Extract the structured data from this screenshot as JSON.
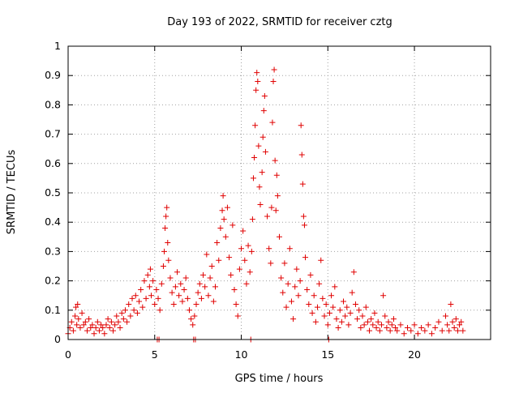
{
  "chart_data": {
    "type": "scatter",
    "title": "Day 193 of 2022, SRMTID for receiver cztg",
    "xlabel": "GPS time / hours",
    "ylabel": "SRMTID / TECUs",
    "xlim": [
      0,
      24.4
    ],
    "ylim": [
      0,
      1
    ],
    "x_ticks": [
      0,
      5,
      10,
      15,
      20
    ],
    "x_tick_labels": [
      "0",
      "5",
      "10",
      "15",
      "20"
    ],
    "y_ticks": [
      0,
      0.1,
      0.2,
      0.3,
      0.4,
      0.5,
      0.6,
      0.7,
      0.8,
      0.9,
      1
    ],
    "y_tick_labels": [
      "0",
      "0.1",
      "0.2",
      "0.3",
      "0.4",
      "0.5",
      "0.6",
      "0.7",
      "0.8",
      "0.9",
      "1"
    ],
    "grid": true,
    "marker": "+",
    "colors": {
      "series": "#e00000",
      "grid": "#a0a0a0",
      "axis": "#000000"
    },
    "series": [
      {
        "name": "SRMTID",
        "points": [
          [
            0.0,
            0.02
          ],
          [
            0.1,
            0.04
          ],
          [
            0.2,
            0.06
          ],
          [
            0.3,
            0.03
          ],
          [
            0.4,
            0.08
          ],
          [
            0.45,
            0.11
          ],
          [
            0.5,
            0.05
          ],
          [
            0.55,
            0.12
          ],
          [
            0.6,
            0.07
          ],
          [
            0.7,
            0.04
          ],
          [
            0.8,
            0.09
          ],
          [
            0.9,
            0.05
          ],
          [
            1.0,
            0.06
          ],
          [
            1.1,
            0.03
          ],
          [
            1.2,
            0.07
          ],
          [
            1.3,
            0.04
          ],
          [
            1.4,
            0.05
          ],
          [
            1.5,
            0.02
          ],
          [
            1.6,
            0.04
          ],
          [
            1.7,
            0.06
          ],
          [
            1.8,
            0.03
          ],
          [
            1.9,
            0.05
          ],
          [
            2.0,
            0.04
          ],
          [
            2.1,
            0.02
          ],
          [
            2.2,
            0.05
          ],
          [
            2.3,
            0.07
          ],
          [
            2.4,
            0.04
          ],
          [
            2.5,
            0.06
          ],
          [
            2.6,
            0.03
          ],
          [
            2.7,
            0.05
          ],
          [
            2.8,
            0.08
          ],
          [
            2.9,
            0.06
          ],
          [
            3.0,
            0.04
          ],
          [
            3.1,
            0.09
          ],
          [
            3.2,
            0.07
          ],
          [
            3.3,
            0.1
          ],
          [
            3.4,
            0.06
          ],
          [
            3.5,
            0.12
          ],
          [
            3.6,
            0.08
          ],
          [
            3.7,
            0.14
          ],
          [
            3.8,
            0.1
          ],
          [
            3.9,
            0.15
          ],
          [
            4.0,
            0.09
          ],
          [
            4.1,
            0.13
          ],
          [
            4.2,
            0.17
          ],
          [
            4.3,
            0.11
          ],
          [
            4.4,
            0.2
          ],
          [
            4.5,
            0.14
          ],
          [
            4.6,
            0.22
          ],
          [
            4.7,
            0.18
          ],
          [
            4.75,
            0.24
          ],
          [
            4.8,
            0.15
          ],
          [
            4.9,
            0.2
          ],
          [
            5.0,
            0.12
          ],
          [
            5.1,
            0.17
          ],
          [
            5.2,
            0.14
          ],
          [
            5.3,
            0.1
          ],
          [
            5.4,
            0.19
          ],
          [
            5.5,
            0.25
          ],
          [
            5.55,
            0.3
          ],
          [
            5.6,
            0.38
          ],
          [
            5.65,
            0.42
          ],
          [
            5.7,
            0.45
          ],
          [
            5.75,
            0.33
          ],
          [
            5.8,
            0.27
          ],
          [
            5.9,
            0.21
          ],
          [
            6.0,
            0.16
          ],
          [
            6.1,
            0.12
          ],
          [
            6.2,
            0.18
          ],
          [
            6.3,
            0.23
          ],
          [
            6.4,
            0.15
          ],
          [
            6.5,
            0.19
          ],
          [
            6.6,
            0.13
          ],
          [
            6.7,
            0.17
          ],
          [
            6.8,
            0.21
          ],
          [
            6.9,
            0.14
          ],
          [
            7.0,
            0.1
          ],
          [
            7.1,
            0.07
          ],
          [
            7.2,
            0.05
          ],
          [
            7.3,
            0.08
          ],
          [
            7.4,
            0.12
          ],
          [
            7.5,
            0.16
          ],
          [
            7.6,
            0.19
          ],
          [
            7.7,
            0.14
          ],
          [
            7.8,
            0.22
          ],
          [
            7.9,
            0.18
          ],
          [
            8.0,
            0.29
          ],
          [
            8.1,
            0.15
          ],
          [
            8.2,
            0.21
          ],
          [
            8.3,
            0.25
          ],
          [
            8.4,
            0.13
          ],
          [
            8.5,
            0.18
          ],
          [
            8.6,
            0.33
          ],
          [
            8.7,
            0.27
          ],
          [
            8.8,
            0.38
          ],
          [
            8.9,
            0.44
          ],
          [
            8.95,
            0.49
          ],
          [
            9.0,
            0.41
          ],
          [
            9.1,
            0.35
          ],
          [
            9.2,
            0.45
          ],
          [
            9.3,
            0.28
          ],
          [
            9.4,
            0.22
          ],
          [
            9.5,
            0.39
          ],
          [
            9.6,
            0.17
          ],
          [
            9.7,
            0.12
          ],
          [
            9.8,
            0.08
          ],
          [
            9.9,
            0.24
          ],
          [
            10.0,
            0.31
          ],
          [
            10.1,
            0.37
          ],
          [
            10.2,
            0.27
          ],
          [
            10.3,
            0.19
          ],
          [
            10.4,
            0.32
          ],
          [
            10.5,
            0.23
          ],
          [
            10.6,
            0.3
          ],
          [
            10.65,
            0.41
          ],
          [
            10.7,
            0.55
          ],
          [
            10.75,
            0.62
          ],
          [
            10.8,
            0.73
          ],
          [
            10.85,
            0.85
          ],
          [
            10.9,
            0.91
          ],
          [
            10.95,
            0.88
          ],
          [
            11.0,
            0.66
          ],
          [
            11.05,
            0.52
          ],
          [
            11.1,
            0.46
          ],
          [
            11.2,
            0.57
          ],
          [
            11.25,
            0.69
          ],
          [
            11.3,
            0.78
          ],
          [
            11.35,
            0.83
          ],
          [
            11.4,
            0.64
          ],
          [
            11.5,
            0.42
          ],
          [
            11.6,
            0.31
          ],
          [
            11.7,
            0.26
          ],
          [
            11.75,
            0.45
          ],
          [
            11.8,
            0.74
          ],
          [
            11.85,
            0.88
          ],
          [
            11.9,
            0.92
          ],
          [
            11.95,
            0.61
          ],
          [
            12.0,
            0.44
          ],
          [
            12.05,
            0.56
          ],
          [
            12.1,
            0.49
          ],
          [
            12.2,
            0.35
          ],
          [
            12.3,
            0.21
          ],
          [
            12.4,
            0.16
          ],
          [
            12.5,
            0.26
          ],
          [
            12.6,
            0.11
          ],
          [
            12.7,
            0.19
          ],
          [
            12.8,
            0.31
          ],
          [
            12.9,
            0.13
          ],
          [
            13.0,
            0.07
          ],
          [
            13.1,
            0.18
          ],
          [
            13.2,
            0.24
          ],
          [
            13.3,
            0.15
          ],
          [
            13.4,
            0.2
          ],
          [
            13.45,
            0.73
          ],
          [
            13.5,
            0.63
          ],
          [
            13.55,
            0.53
          ],
          [
            13.6,
            0.42
          ],
          [
            13.65,
            0.39
          ],
          [
            13.7,
            0.28
          ],
          [
            13.8,
            0.17
          ],
          [
            13.9,
            0.12
          ],
          [
            14.0,
            0.22
          ],
          [
            14.1,
            0.09
          ],
          [
            14.2,
            0.15
          ],
          [
            14.3,
            0.06
          ],
          [
            14.4,
            0.11
          ],
          [
            14.5,
            0.19
          ],
          [
            14.6,
            0.27
          ],
          [
            14.7,
            0.14
          ],
          [
            14.8,
            0.08
          ],
          [
            14.9,
            0.12
          ],
          [
            15.0,
            0.05
          ],
          [
            15.1,
            0.09
          ],
          [
            15.2,
            0.15
          ],
          [
            15.3,
            0.11
          ],
          [
            15.4,
            0.18
          ],
          [
            15.5,
            0.07
          ],
          [
            15.6,
            0.04
          ],
          [
            15.7,
            0.1
          ],
          [
            15.8,
            0.06
          ],
          [
            15.9,
            0.13
          ],
          [
            16.0,
            0.08
          ],
          [
            16.1,
            0.11
          ],
          [
            16.2,
            0.05
          ],
          [
            16.3,
            0.09
          ],
          [
            16.4,
            0.16
          ],
          [
            16.5,
            0.23
          ],
          [
            16.6,
            0.12
          ],
          [
            16.7,
            0.07
          ],
          [
            16.8,
            0.1
          ],
          [
            16.9,
            0.04
          ],
          [
            17.0,
            0.08
          ],
          [
            17.1,
            0.05
          ],
          [
            17.2,
            0.11
          ],
          [
            17.3,
            0.06
          ],
          [
            17.4,
            0.03
          ],
          [
            17.5,
            0.07
          ],
          [
            17.6,
            0.05
          ],
          [
            17.7,
            0.09
          ],
          [
            17.8,
            0.04
          ],
          [
            17.9,
            0.06
          ],
          [
            18.0,
            0.03
          ],
          [
            18.1,
            0.05
          ],
          [
            18.2,
            0.15
          ],
          [
            18.3,
            0.08
          ],
          [
            18.4,
            0.04
          ],
          [
            18.5,
            0.06
          ],
          [
            18.6,
            0.03
          ],
          [
            18.7,
            0.05
          ],
          [
            18.8,
            0.07
          ],
          [
            18.9,
            0.04
          ],
          [
            19.0,
            0.03
          ],
          [
            19.2,
            0.05
          ],
          [
            19.4,
            0.02
          ],
          [
            19.6,
            0.04
          ],
          [
            19.8,
            0.03
          ],
          [
            20.0,
            0.05
          ],
          [
            20.2,
            0.02
          ],
          [
            20.4,
            0.04
          ],
          [
            20.6,
            0.03
          ],
          [
            20.8,
            0.05
          ],
          [
            21.0,
            0.02
          ],
          [
            21.2,
            0.04
          ],
          [
            21.4,
            0.06
          ],
          [
            21.6,
            0.03
          ],
          [
            21.8,
            0.08
          ],
          [
            21.9,
            0.05
          ],
          [
            22.0,
            0.03
          ],
          [
            22.1,
            0.12
          ],
          [
            22.2,
            0.06
          ],
          [
            22.3,
            0.04
          ],
          [
            22.4,
            0.07
          ],
          [
            22.5,
            0.03
          ],
          [
            22.6,
            0.05
          ],
          [
            22.7,
            0.06
          ],
          [
            22.8,
            0.03
          ]
        ]
      }
    ],
    "zero_markers_x": [
      5.15,
      5.25,
      7.25,
      7.35,
      10.55,
      15.05
    ]
  }
}
